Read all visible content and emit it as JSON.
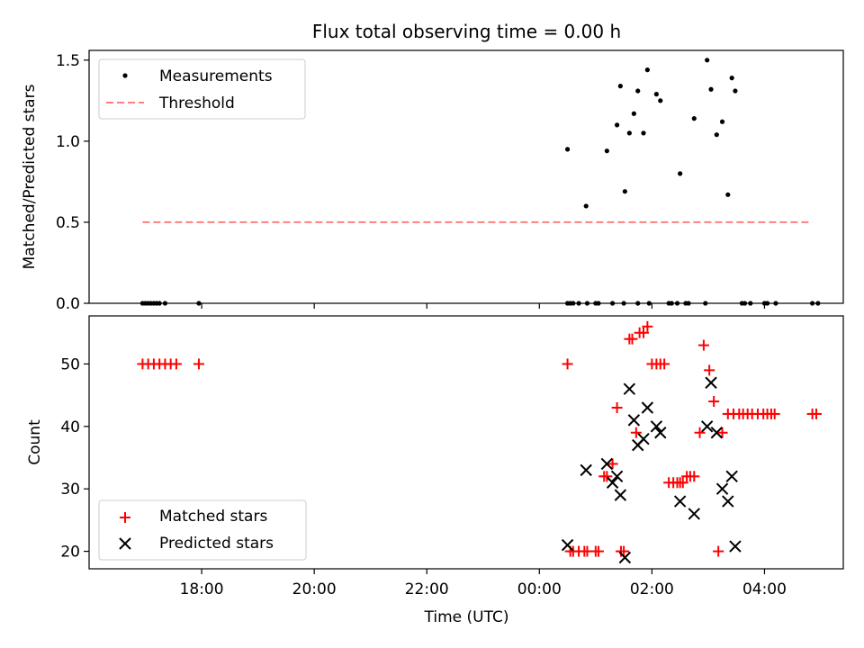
{
  "chart_data": [
    {
      "type": "scatter",
      "title": "Flux total observing time = 0.00 h",
      "xlabel": "",
      "ylabel": "Matched/Predicted stars",
      "ylim": [
        0,
        1.56
      ],
      "yticks": [
        0.0,
        0.5,
        1.0,
        1.5
      ],
      "ytick_labels": [
        "0.0",
        "0.5",
        "1.0",
        "1.5"
      ],
      "x_unit": "hours since 00:00 UTC",
      "xlim": [
        -8.0,
        5.4
      ],
      "legend": "upper-left",
      "series": [
        {
          "name": "Measurements",
          "kind": "points",
          "color": "#000000",
          "x": [
            -7.05,
            -7.0,
            -6.95,
            -6.9,
            -6.85,
            -6.8,
            -6.75,
            -6.65,
            -6.05,
            0.5,
            0.55,
            0.6,
            0.7,
            0.85,
            1.0,
            1.05,
            1.3,
            1.5,
            1.75,
            1.95,
            2.3,
            2.35,
            2.45,
            2.6,
            2.65,
            2.95,
            3.6,
            3.65,
            3.75,
            4.0,
            4.05,
            4.2,
            4.85,
            4.95,
            0.5,
            0.83,
            1.2,
            1.38,
            1.44,
            1.52,
            1.6,
            1.68,
            1.75,
            1.85,
            1.92,
            2.08,
            2.15,
            2.5,
            2.75,
            2.98,
            3.05,
            3.15,
            3.25,
            3.35,
            3.42,
            3.48
          ],
          "y": [
            0,
            0,
            0,
            0,
            0,
            0,
            0,
            0,
            0,
            0,
            0,
            0,
            0,
            0,
            0,
            0,
            0,
            0,
            0,
            0,
            0,
            0,
            0,
            0,
            0,
            0,
            0,
            0,
            0,
            0,
            0,
            0,
            0,
            0,
            0.95,
            0.6,
            0.94,
            1.1,
            1.34,
            0.69,
            1.05,
            1.17,
            1.31,
            1.05,
            1.44,
            1.29,
            1.25,
            0.8,
            1.14,
            1.5,
            1.32,
            1.04,
            1.12,
            0.67,
            1.39,
            1.31
          ]
        },
        {
          "name": "Threshold",
          "kind": "dashed-line",
          "color": "#ff7f7f",
          "x": [
            -7.05,
            4.85
          ],
          "y": [
            0.5,
            0.5
          ]
        }
      ]
    },
    {
      "type": "scatter",
      "title": "",
      "xlabel": "Time (UTC)",
      "ylabel": "Count",
      "ylim": [
        17.2,
        57.7
      ],
      "yticks": [
        20,
        30,
        40,
        50
      ],
      "ytick_labels": [
        "20",
        "30",
        "40",
        "50"
      ],
      "x_unit": "hours since 00:00 UTC",
      "xlim": [
        -8.0,
        5.4
      ],
      "xticks": [
        -6,
        -4,
        -2,
        0,
        2,
        4
      ],
      "xtick_labels": [
        "18:00",
        "20:00",
        "22:00",
        "00:00",
        "02:00",
        "04:00"
      ],
      "legend": "lower-left",
      "series": [
        {
          "name": "Matched stars",
          "kind": "plus",
          "color": "#ff0000",
          "x": [
            -7.05,
            -6.95,
            -6.85,
            -6.75,
            -6.65,
            -6.55,
            -6.45,
            -6.05,
            0.5,
            0.55,
            0.6,
            0.7,
            0.8,
            0.85,
            1.0,
            1.05,
            1.15,
            1.2,
            1.3,
            1.38,
            1.45,
            1.5,
            1.6,
            1.65,
            1.72,
            1.78,
            1.85,
            1.92,
            2.0,
            2.08,
            2.15,
            2.22,
            2.3,
            2.38,
            2.45,
            2.5,
            2.55,
            2.62,
            2.68,
            2.75,
            2.85,
            2.92,
            3.02,
            3.1,
            3.18,
            3.25,
            3.35,
            3.45,
            3.55,
            3.62,
            3.7,
            3.78,
            3.88,
            3.98,
            4.05,
            4.12,
            4.18,
            4.85,
            4.92
          ],
          "y": [
            50,
            50,
            50,
            50,
            50,
            50,
            50,
            50,
            50,
            20,
            20,
            20,
            20,
            20,
            20,
            20,
            32,
            32,
            34,
            43,
            20,
            20,
            54,
            54,
            39,
            55,
            55,
            56,
            50,
            50,
            50,
            50,
            31,
            31,
            31,
            31,
            31,
            32,
            32,
            32,
            39,
            53,
            49,
            44,
            20,
            39,
            42,
            42,
            42,
            42,
            42,
            42,
            42,
            42,
            42,
            42,
            42,
            42,
            42
          ]
        },
        {
          "name": "Predicted stars",
          "kind": "x",
          "color": "#000000",
          "x": [
            0.5,
            0.83,
            1.2,
            1.3,
            1.38,
            1.44,
            1.52,
            1.6,
            1.68,
            1.75,
            1.85,
            1.92,
            2.08,
            2.15,
            2.5,
            2.75,
            2.98,
            3.05,
            3.15,
            3.25,
            3.35,
            3.42,
            3.48
          ],
          "y": [
            21,
            33,
            34,
            31,
            32,
            29,
            19,
            46,
            41,
            37,
            38,
            43,
            40,
            39,
            28,
            26,
            40,
            47,
            39,
            30,
            28,
            32,
            20.8
          ]
        }
      ]
    }
  ]
}
